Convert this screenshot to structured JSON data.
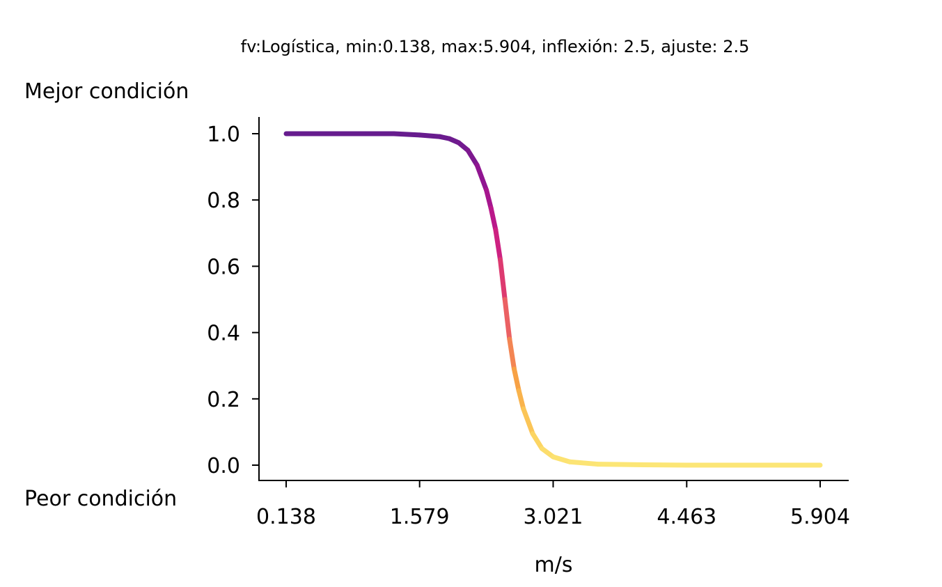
{
  "chart_data": {
    "type": "line",
    "title": "fv:Logística, min:0.138, max:5.904, inflexión: 2.5, ajuste: 2.5",
    "xlabel": "m/s",
    "ylabel_top": "Mejor condición",
    "ylabel_bottom": "Peor condición",
    "xlim": [
      0.138,
      5.904
    ],
    "ylim": [
      0.0,
      1.0
    ],
    "xticks": [
      "0.138",
      "1.579",
      "3.021",
      "4.463",
      "5.904"
    ],
    "yticks": [
      "0.0",
      "0.2",
      "0.4",
      "0.6",
      "0.8",
      "1.0"
    ],
    "grid": false,
    "colormap": "plasma",
    "series": [
      {
        "x": [
          0.138,
          0.5,
          1.0,
          1.3,
          1.579,
          1.8,
          1.9,
          2.0,
          2.1,
          2.2,
          2.3,
          2.35,
          2.4,
          2.45,
          2.5,
          2.55,
          2.6,
          2.65,
          2.7,
          2.8,
          2.9,
          3.021,
          3.2,
          3.5,
          4.0,
          4.463,
          5.0,
          5.904
        ],
        "values": [
          1.0,
          1.0,
          1.0,
          1.0,
          0.996,
          0.991,
          0.985,
          0.973,
          0.95,
          0.905,
          0.83,
          0.775,
          0.71,
          0.62,
          0.5,
          0.38,
          0.29,
          0.225,
          0.17,
          0.095,
          0.05,
          0.025,
          0.01,
          0.003,
          0.001,
          0.0,
          0.0,
          0.0
        ]
      }
    ]
  }
}
